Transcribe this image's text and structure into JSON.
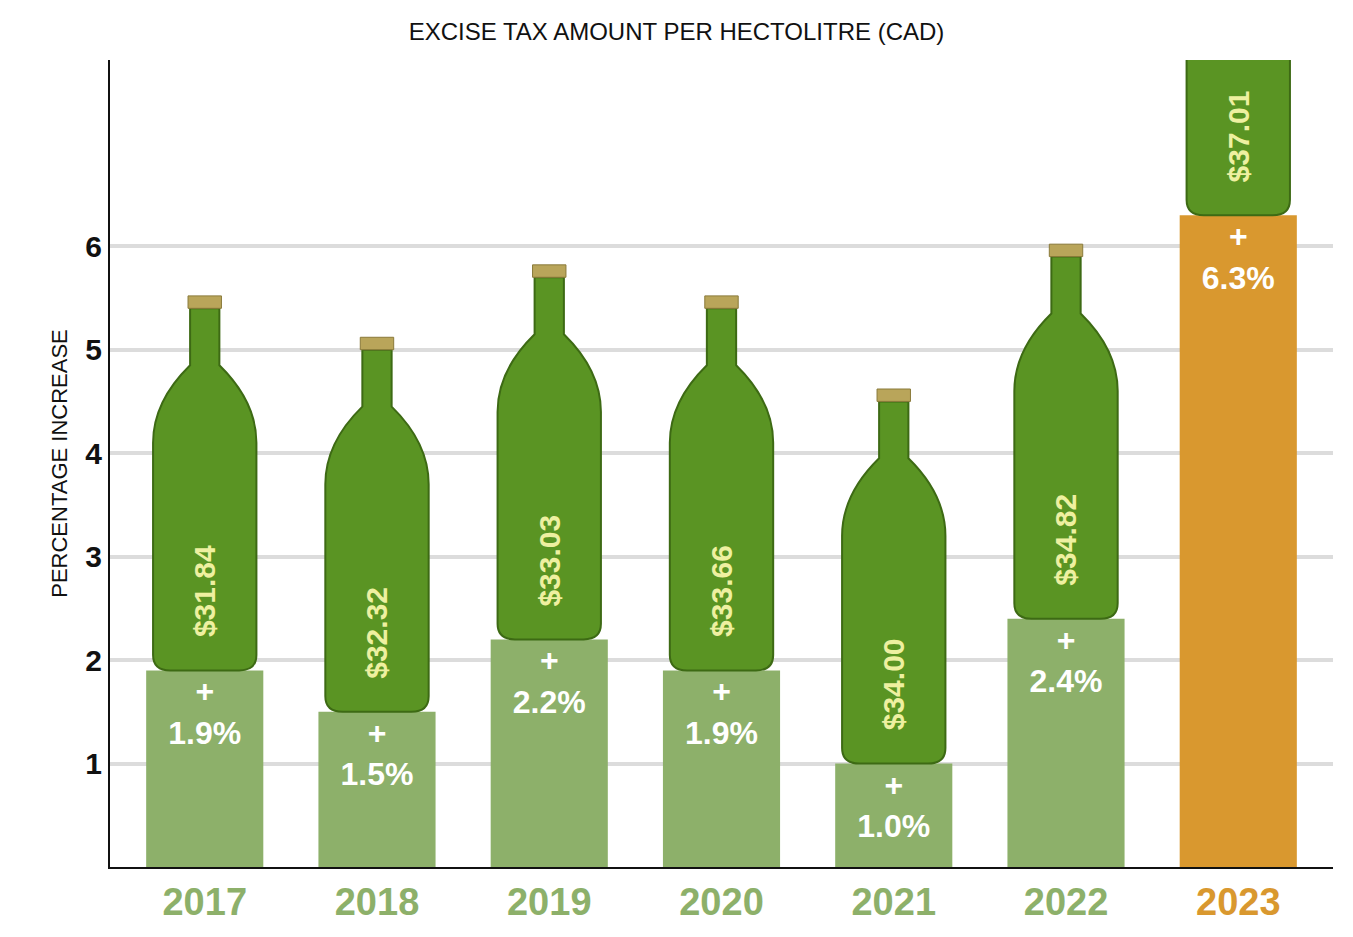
{
  "chart_data": {
    "type": "bar",
    "title": "EXCISE TAX AMOUNT PER HECTOLITRE (CAD)",
    "y_label": "PERCENTAGE INCREASE",
    "categories": [
      "2017",
      "2018",
      "2019",
      "2020",
      "2021",
      "2022",
      "2023"
    ],
    "values": [
      1.9,
      1.5,
      2.2,
      1.9,
      1.0,
      2.4,
      6.3
    ],
    "value_labels": [
      "+ 1.9%",
      "+ 1.5%",
      "+ 2.2%",
      "+ 1.9%",
      "+ 1.0%",
      "+ 2.4%",
      "+ 6.3%"
    ],
    "data_labels": true,
    "colors": [
      "#8db06a",
      "#8db06a",
      "#8db06a",
      "#8db06a",
      "#8db06a",
      "#8db06a",
      "#d9982f"
    ],
    "ylim": [
      0,
      7.8
    ],
    "yticks": [
      1,
      2,
      3,
      4,
      5,
      6
    ],
    "grid": true,
    "annotations": [
      {
        "category": "2017",
        "text": "$31.84"
      },
      {
        "category": "2018",
        "text": "$32.32"
      },
      {
        "category": "2019",
        "text": "$33.03"
      },
      {
        "category": "2020",
        "text": "$33.66"
      },
      {
        "category": "2021",
        "text": "$34.00"
      },
      {
        "category": "2022",
        "text": "$34.82"
      },
      {
        "category": "2023",
        "text": "$37.01"
      }
    ]
  }
}
